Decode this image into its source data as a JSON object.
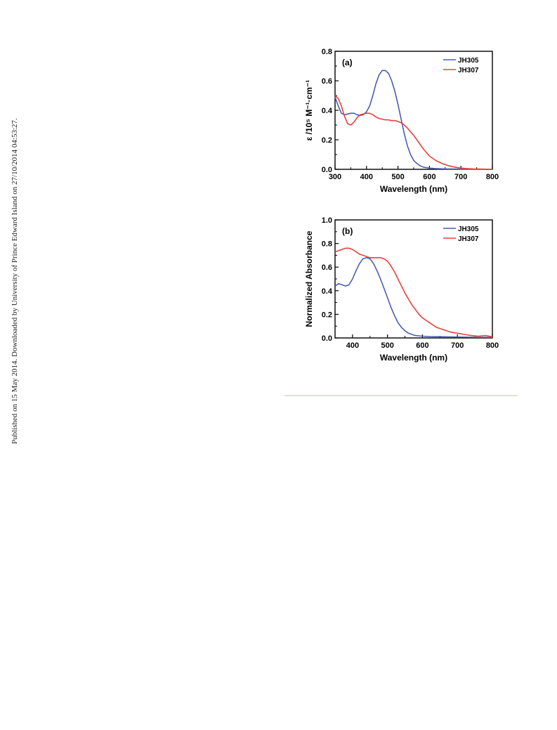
{
  "side_note": "Published on 15 May 2014. Downloaded by University of Prince Edward Island on 27/10/2014 04:53:27.",
  "colors": {
    "JH305": "#4a5db3",
    "JH307": "#e8413c",
    "axis": "#000000"
  },
  "chart_data": [
    {
      "type": "line",
      "panel_label": "(a)",
      "xlabel": "Wavelength (nm)",
      "ylabel": "ε /10⁵ M⁻¹·cm⁻¹",
      "xlim": [
        300,
        800
      ],
      "ylim": [
        0.0,
        0.8
      ],
      "xticks": [
        300,
        400,
        500,
        600,
        700,
        800
      ],
      "yticks": [
        "0.0",
        "0.2",
        "0.4",
        "0.6",
        "0.8"
      ],
      "legend_position": "top-right",
      "series": [
        {
          "name": "JH305",
          "color": "#4a5db3",
          "x": [
            300,
            310,
            320,
            330,
            340,
            350,
            360,
            370,
            380,
            390,
            400,
            410,
            420,
            430,
            440,
            450,
            460,
            470,
            480,
            490,
            500,
            510,
            520,
            530,
            540,
            550,
            560,
            570,
            580,
            600,
            620,
            650,
            700,
            750,
            800
          ],
          "y": [
            0.49,
            0.43,
            0.38,
            0.37,
            0.375,
            0.38,
            0.38,
            0.37,
            0.365,
            0.37,
            0.39,
            0.43,
            0.5,
            0.58,
            0.64,
            0.67,
            0.67,
            0.65,
            0.6,
            0.53,
            0.44,
            0.34,
            0.24,
            0.16,
            0.1,
            0.06,
            0.04,
            0.025,
            0.015,
            0.008,
            0.005,
            0.003,
            0.002,
            0.001,
            0.0
          ]
        },
        {
          "name": "JH307",
          "color": "#e8413c",
          "x": [
            300,
            310,
            320,
            330,
            340,
            350,
            360,
            370,
            380,
            390,
            400,
            410,
            420,
            430,
            440,
            450,
            460,
            470,
            480,
            490,
            500,
            510,
            520,
            530,
            540,
            550,
            560,
            580,
            600,
            620,
            640,
            660,
            680,
            700,
            720,
            740,
            760,
            780,
            800
          ],
          "y": [
            0.5,
            0.48,
            0.43,
            0.36,
            0.31,
            0.3,
            0.32,
            0.35,
            0.37,
            0.375,
            0.38,
            0.38,
            0.37,
            0.355,
            0.345,
            0.34,
            0.335,
            0.335,
            0.33,
            0.33,
            0.325,
            0.315,
            0.3,
            0.28,
            0.255,
            0.23,
            0.2,
            0.14,
            0.09,
            0.06,
            0.04,
            0.025,
            0.015,
            0.008,
            0.005,
            0.003,
            0.002,
            0.001,
            0.001
          ]
        }
      ]
    },
    {
      "type": "line",
      "panel_label": "(b)",
      "xlabel": "Wavelength (nm)",
      "ylabel": "Normalized Absorbance",
      "xlim": [
        350,
        800
      ],
      "ylim": [
        0.0,
        1.0
      ],
      "xticks": [
        400,
        500,
        600,
        700,
        800
      ],
      "yticks": [
        "0.0",
        "0.2",
        "0.4",
        "0.6",
        "0.8",
        "1.0"
      ],
      "legend_position": "top-right",
      "series": [
        {
          "name": "JH305",
          "color": "#4a5db3",
          "x": [
            350,
            360,
            370,
            380,
            390,
            400,
            410,
            420,
            430,
            440,
            450,
            460,
            470,
            480,
            490,
            500,
            510,
            520,
            530,
            540,
            550,
            560,
            570,
            580,
            600,
            620,
            650,
            700,
            750,
            800
          ],
          "y": [
            0.44,
            0.46,
            0.45,
            0.44,
            0.45,
            0.5,
            0.57,
            0.63,
            0.67,
            0.68,
            0.67,
            0.63,
            0.57,
            0.5,
            0.42,
            0.34,
            0.26,
            0.19,
            0.13,
            0.09,
            0.06,
            0.04,
            0.03,
            0.02,
            0.015,
            0.012,
            0.01,
            0.008,
            0.006,
            0.005
          ]
        },
        {
          "name": "JH307",
          "color": "#e8413c",
          "x": [
            350,
            360,
            370,
            380,
            390,
            400,
            410,
            420,
            430,
            440,
            450,
            460,
            470,
            480,
            490,
            500,
            510,
            520,
            530,
            540,
            550,
            560,
            570,
            580,
            590,
            600,
            620,
            640,
            660,
            680,
            700,
            720,
            740,
            760,
            780,
            800
          ],
          "y": [
            0.73,
            0.74,
            0.75,
            0.76,
            0.76,
            0.75,
            0.73,
            0.71,
            0.7,
            0.69,
            0.68,
            0.68,
            0.68,
            0.68,
            0.67,
            0.65,
            0.61,
            0.56,
            0.5,
            0.44,
            0.38,
            0.33,
            0.28,
            0.24,
            0.2,
            0.17,
            0.13,
            0.09,
            0.07,
            0.05,
            0.04,
            0.03,
            0.02,
            0.015,
            0.02,
            0.01
          ]
        }
      ]
    }
  ]
}
